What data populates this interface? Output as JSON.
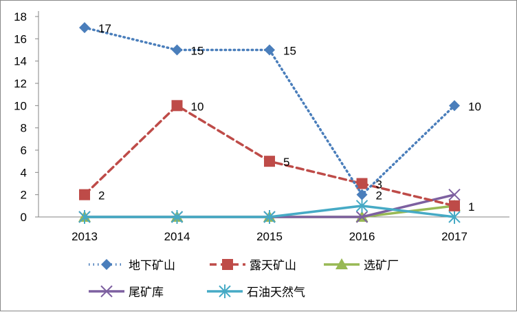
{
  "chart_data": {
    "type": "line",
    "title": "",
    "xlabel": "",
    "ylabel": "",
    "categories": [
      "2013",
      "2014",
      "2015",
      "2016",
      "2017"
    ],
    "ylim": [
      0,
      18
    ],
    "yticks": [
      0,
      2,
      4,
      6,
      8,
      10,
      12,
      14,
      16,
      18
    ],
    "grid": false,
    "legend_position": "bottom",
    "series": [
      {
        "name": "地下矿山",
        "values": [
          17,
          15,
          15,
          2,
          10
        ],
        "color": "#4a7ebb",
        "style": "dotted",
        "marker": "diamond",
        "labels": true
      },
      {
        "name": "露天矿山",
        "values": [
          2,
          10,
          5,
          3,
          1
        ],
        "color": "#be4b48",
        "style": "dashed",
        "marker": "square",
        "labels": true
      },
      {
        "name": "选矿厂",
        "values": [
          0,
          0,
          0,
          0,
          1
        ],
        "color": "#98b954",
        "style": "solid",
        "marker": "triangle",
        "labels": false
      },
      {
        "name": "尾矿库",
        "values": [
          0,
          0,
          0,
          0,
          2
        ],
        "color": "#7d60a0",
        "style": "solid",
        "marker": "x",
        "labels": false
      },
      {
        "name": "石油天然气",
        "values": [
          0,
          0,
          0,
          1,
          0
        ],
        "color": "#46aac5",
        "style": "solid",
        "marker": "star",
        "labels": false
      }
    ]
  }
}
